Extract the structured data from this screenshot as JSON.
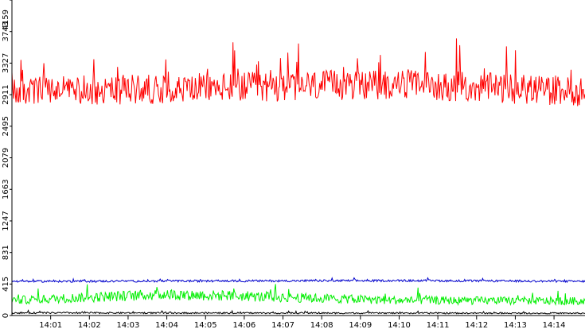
{
  "chart_data": {
    "type": "line",
    "title": "",
    "xlabel": "",
    "ylabel": "",
    "ylim": [
      0,
      4159
    ],
    "xlim_minutes": [
      14.0,
      14.74
    ],
    "yticks": [
      0,
      415,
      831,
      1247,
      1663,
      2079,
      2495,
      2911,
      3327,
      3743,
      4159
    ],
    "ytick_labels": [
      "0",
      "415",
      "831",
      "1247",
      "1663",
      "2079",
      "2495",
      "2911",
      "3327",
      "3743",
      "4159"
    ],
    "xtick_labels": [
      "14:01",
      "14:02",
      "14:03",
      "14:04",
      "14:05",
      "14:06",
      "14:07",
      "14:08",
      "14:09",
      "14:10",
      "14:11",
      "14:12",
      "14:13",
      "14:14"
    ],
    "xtick_minutes": [
      1,
      2,
      3,
      4,
      5,
      6,
      7,
      8,
      9,
      10,
      11,
      12,
      13,
      14
    ],
    "grid": false,
    "legend": "none",
    "series": [
      {
        "color": "#ff0000",
        "x": [
          0.0,
          0.5,
          1.0,
          1.5,
          2.0,
          2.5,
          3.0,
          3.3,
          3.5,
          3.7,
          4.0,
          4.5,
          5.0,
          5.5,
          6.0,
          6.5,
          7.0,
          7.5,
          7.8,
          8.0,
          8.5,
          9.0,
          9.5,
          10.0,
          10.5,
          11.0,
          11.5,
          12.0,
          12.5,
          13.0,
          13.2,
          13.5,
          14.0,
          14.5,
          14.74
        ],
        "values": [
          2150,
          2220,
          2300,
          2400,
          2260,
          2300,
          2450,
          2550,
          3550,
          2450,
          2380,
          2380,
          2420,
          2350,
          2500,
          2350,
          2200,
          2250,
          2700,
          2750,
          2600,
          2700,
          2650,
          2650,
          2700,
          2750,
          2800,
          2900,
          2950,
          3000,
          3150,
          2950,
          2950,
          3050,
          2950
        ]
      },
      {
        "color": "#0000cc",
        "x": [
          0.0,
          1.0,
          2.0,
          3.0,
          3.5,
          3.7,
          4.0,
          5.0,
          6.0,
          6.8,
          7.0,
          7.2,
          8.0,
          9.0,
          9.3,
          10.0,
          11.0,
          12.0,
          13.0,
          13.9,
          14.0,
          14.5,
          14.74
        ],
        "values": [
          460,
          470,
          450,
          460,
          520,
          470,
          450,
          450,
          450,
          500,
          520,
          480,
          460,
          460,
          560,
          450,
          440,
          450,
          440,
          820,
          450,
          460,
          450
        ]
      },
      {
        "color": "#00ee00",
        "x": [
          0.0,
          0.3,
          1.0,
          2.0,
          3.0,
          4.0,
          5.0,
          6.0,
          7.0,
          7.5,
          8.0,
          9.0,
          10.0,
          11.0,
          12.0,
          12.7,
          13.0,
          13.9,
          14.2,
          14.5,
          14.74
        ],
        "values": [
          200,
          330,
          180,
          220,
          200,
          240,
          190,
          200,
          180,
          230,
          160,
          150,
          150,
          150,
          170,
          220,
          180,
          160,
          280,
          200,
          190
        ]
      },
      {
        "color": "#000000",
        "x": [
          0.0,
          2.0,
          4.0,
          6.0,
          8.0,
          10.0,
          12.0,
          14.0,
          14.74
        ],
        "values": [
          30,
          35,
          30,
          35,
          30,
          35,
          30,
          35,
          30
        ]
      }
    ]
  }
}
